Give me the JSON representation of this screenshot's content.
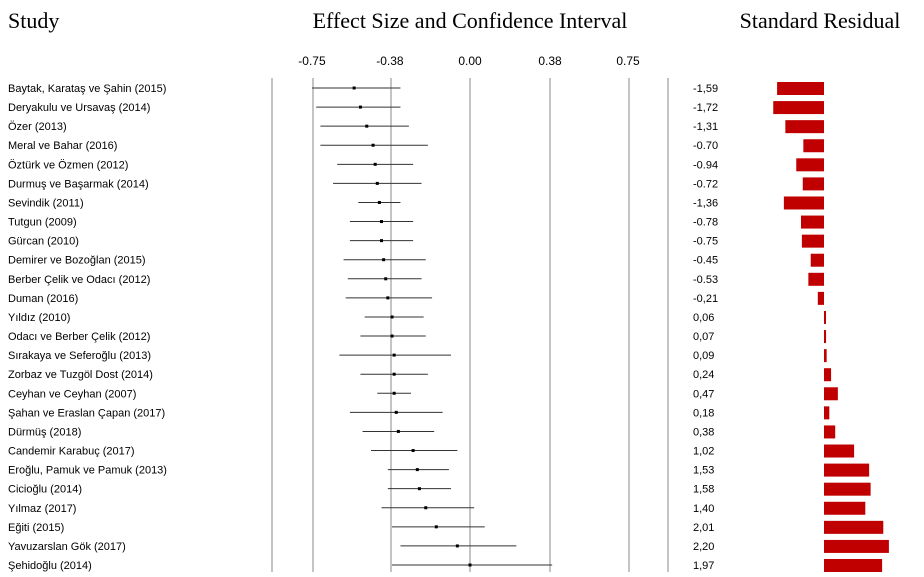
{
  "headers": {
    "study": "Study",
    "effect": "Effect Size and Confidence Interval",
    "residual": "Standard Residual"
  },
  "chart_data": {
    "type": "forest",
    "x_ticks": [
      "-0.75",
      "-0.38",
      "0.00",
      "0.38",
      "0.75"
    ],
    "x_tick_values": [
      -0.75,
      -0.38,
      0.0,
      0.38,
      0.75
    ],
    "bar_color": "#c00000",
    "studies": [
      {
        "label": "Baytak, Karataş ve Şahin (2015)",
        "es": -0.55,
        "lo": -0.75,
        "hi": -0.33,
        "residual_label": "-1,59",
        "residual": -1.59
      },
      {
        "label": "Deryakulu ve Ursavaş (2014)",
        "es": -0.52,
        "lo": -0.73,
        "hi": -0.33,
        "residual_label": "-1,72",
        "residual": -1.72
      },
      {
        "label": "Özer (2013)",
        "es": -0.49,
        "lo": -0.71,
        "hi": -0.29,
        "residual_label": "-1,31",
        "residual": -1.31
      },
      {
        "label": "Meral ve Bahar (2016)",
        "es": -0.46,
        "lo": -0.71,
        "hi": -0.2,
        "residual_label": "-0.70",
        "residual": -0.7
      },
      {
        "label": "Öztürk ve Özmen (2012)",
        "es": -0.45,
        "lo": -0.63,
        "hi": -0.27,
        "residual_label": "-0.94",
        "residual": -0.94
      },
      {
        "label": "Durmuş ve Başarmak (2014)",
        "es": -0.44,
        "lo": -0.65,
        "hi": -0.23,
        "residual_label": "-0.72",
        "residual": -0.72
      },
      {
        "label": "Sevindik (2011)",
        "es": -0.43,
        "lo": -0.53,
        "hi": -0.33,
        "residual_label": "-1,36",
        "residual": -1.36
      },
      {
        "label": "Tutgun (2009)",
        "es": -0.42,
        "lo": -0.57,
        "hi": -0.27,
        "residual_label": "-0.78",
        "residual": -0.78
      },
      {
        "label": "Gürcan (2010)",
        "es": -0.42,
        "lo": -0.57,
        "hi": -0.27,
        "residual_label": "-0.75",
        "residual": -0.75
      },
      {
        "label": "Demirer ve Bozoğlan (2015)",
        "es": -0.41,
        "lo": -0.6,
        "hi": -0.21,
        "residual_label": "-0.45",
        "residual": -0.45
      },
      {
        "label": "Berber Çelik ve Odacı (2012)",
        "es": -0.4,
        "lo": -0.58,
        "hi": -0.23,
        "residual_label": "-0.53",
        "residual": -0.53
      },
      {
        "label": "Duman (2016)",
        "es": -0.39,
        "lo": -0.59,
        "hi": -0.18,
        "residual_label": "-0,21",
        "residual": -0.21
      },
      {
        "label": "Yıldız (2010)",
        "es": -0.37,
        "lo": -0.5,
        "hi": -0.22,
        "residual_label": "0,06",
        "residual": 0.06
      },
      {
        "label": "Odacı ve Berber Çelik (2012)",
        "es": -0.37,
        "lo": -0.52,
        "hi": -0.21,
        "residual_label": "0,07",
        "residual": 0.07
      },
      {
        "label": "Sırakaya ve Seferoğlu (2013)",
        "es": -0.36,
        "lo": -0.62,
        "hi": -0.09,
        "residual_label": "0,09",
        "residual": 0.09
      },
      {
        "label": "Zorbaz ve Tuzgöl Dost (2014)",
        "es": -0.36,
        "lo": -0.52,
        "hi": -0.2,
        "residual_label": "0,24",
        "residual": 0.24
      },
      {
        "label": "Ceyhan ve Ceyhan (2007)",
        "es": -0.36,
        "lo": -0.44,
        "hi": -0.28,
        "residual_label": "0,47",
        "residual": 0.47
      },
      {
        "label": "Şahan ve Eraslan Çapan (2017)",
        "es": -0.35,
        "lo": -0.57,
        "hi": -0.13,
        "residual_label": "0,18",
        "residual": 0.18
      },
      {
        "label": "Dürmüş (2018)",
        "es": -0.34,
        "lo": -0.51,
        "hi": -0.17,
        "residual_label": "0,38",
        "residual": 0.38
      },
      {
        "label": "Candemir Karabuç (2017)",
        "es": -0.27,
        "lo": -0.47,
        "hi": -0.06,
        "residual_label": "1,02",
        "residual": 1.02
      },
      {
        "label": "Eroğlu, Pamuk ve Pamuk (2013)",
        "es": -0.25,
        "lo": -0.39,
        "hi": -0.1,
        "residual_label": "1,53",
        "residual": 1.53
      },
      {
        "label": "Cicioğlu (2014)",
        "es": -0.24,
        "lo": -0.39,
        "hi": -0.09,
        "residual_label": "1,58",
        "residual": 1.58
      },
      {
        "label": "Yılmaz (2017)",
        "es": -0.21,
        "lo": -0.42,
        "hi": 0.02,
        "residual_label": "1,40",
        "residual": 1.4
      },
      {
        "label": "Eğiti (2015)",
        "es": -0.16,
        "lo": -0.37,
        "hi": 0.07,
        "residual_label": "2,01",
        "residual": 2.01
      },
      {
        "label": "Yavuzarslan Gök (2017)",
        "es": -0.06,
        "lo": -0.33,
        "hi": 0.22,
        "residual_label": "2,20",
        "residual": 2.2
      },
      {
        "label": "Şehidoğlu (2014)",
        "es": 0.0,
        "lo": -0.37,
        "hi": 0.39,
        "residual_label": "1,97",
        "residual": 1.97
      }
    ]
  }
}
